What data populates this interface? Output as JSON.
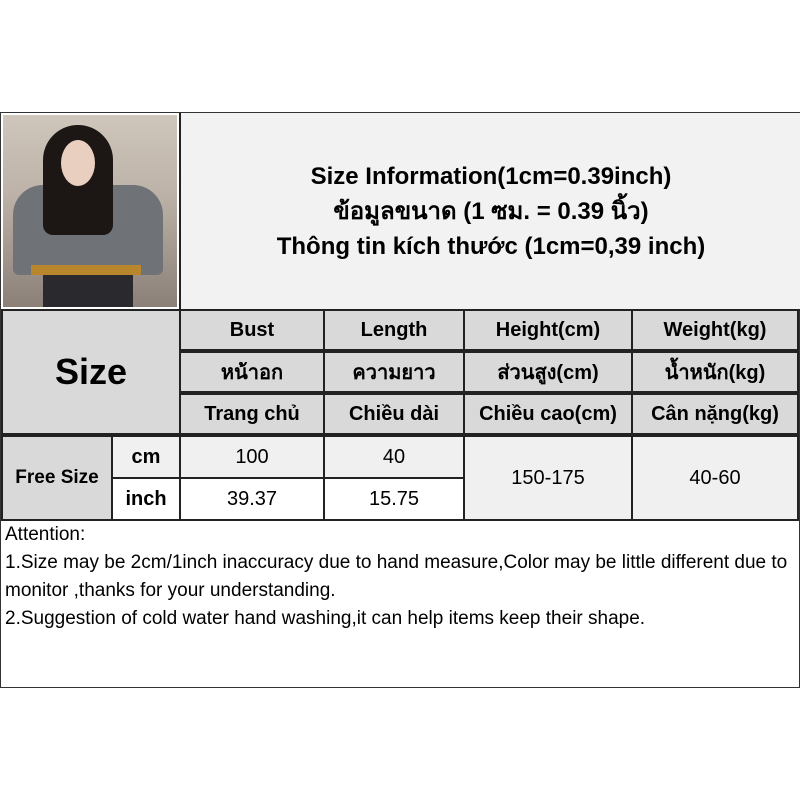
{
  "title_lines": [
    "Size Information(1cm=0.39inch)",
    "ข้อมูลขนาด (1 ซม. = 0.39 นิ้ว)",
    "Thông tin kích thước (1cm=0,39 inch)"
  ],
  "size_label": "Size",
  "columns": [
    {
      "en": "Bust",
      "th": "หน้าอก",
      "vi": "Trang chủ"
    },
    {
      "en": "Length",
      "th": "ความยาว",
      "vi": "Chiều dài"
    },
    {
      "en": "Height(cm)",
      "th": "ส่วนสูง(cm)",
      "vi": "Chiều cao(cm)"
    },
    {
      "en": "Weight(kg)",
      "th": "น้ำหนัก(kg)",
      "vi": "Cân nặng(kg)"
    }
  ],
  "rows": {
    "size_name": "Free Size",
    "cm": {
      "unit": "cm",
      "bust": "100",
      "length": "40"
    },
    "inch": {
      "unit": "inch",
      "bust": "39.37",
      "length": "15.75"
    },
    "height": "150-175",
    "weight": "40-60"
  },
  "attention": {
    "heading": "Attention:",
    "line1": "1.Size may be 2cm/1inch inaccuracy due to hand measure,Color may be little different due to monitor ,thanks for your understanding.",
    "line2": "2.Suggestion of cold water hand washing,it can help items keep their shape."
  },
  "colors": {
    "header_gray": "#d9d9d9",
    "light_gray": "#f0f0f0",
    "border": "#222222"
  }
}
